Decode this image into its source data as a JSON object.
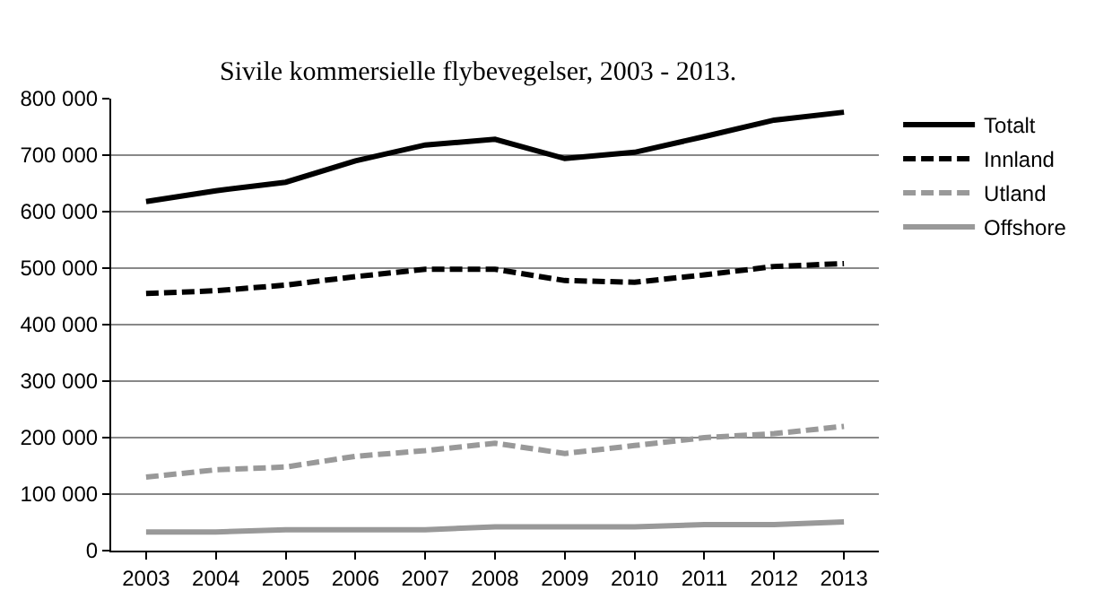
{
  "chart_data": {
    "type": "line",
    "title": "Sivile kommersielle flybevegelser, 2003 - 2013.",
    "categories": [
      "2003",
      "2004",
      "2005",
      "2006",
      "2007",
      "2008",
      "2009",
      "2010",
      "2011",
      "2012",
      "2013"
    ],
    "series": [
      {
        "name": "Totalt",
        "color": "#000000",
        "line_style": "solid",
        "values": [
          618000,
          637000,
          652000,
          690000,
          718000,
          728000,
          694000,
          705000,
          733000,
          762000,
          776000
        ]
      },
      {
        "name": "Innland",
        "color": "#000000",
        "line_style": "dashed",
        "values": [
          455000,
          460000,
          470000,
          485000,
          498000,
          498000,
          478000,
          475000,
          488000,
          503000,
          508000
        ]
      },
      {
        "name": "Utland",
        "color": "#999999",
        "line_style": "dashed",
        "values": [
          130000,
          143000,
          148000,
          167000,
          177000,
          190000,
          172000,
          186000,
          200000,
          207000,
          220000
        ]
      },
      {
        "name": "Offshore",
        "color": "#999999",
        "line_style": "solid",
        "values": [
          33000,
          33000,
          37000,
          37000,
          37000,
          42000,
          42000,
          42000,
          46000,
          46000,
          51000
        ]
      }
    ],
    "ylim": [
      0,
      800000
    ],
    "yticks": [
      0,
      {
        "value": 100000,
        "label": "100 000"
      },
      {
        "value": 200000,
        "label": "200 000"
      },
      {
        "value": 300000,
        "label": "300 000"
      },
      {
        "value": 400000,
        "label": "400 000"
      },
      {
        "value": 500000,
        "label": "500 000"
      },
      {
        "value": 600000,
        "label": "600 000"
      },
      {
        "value": 700000,
        "label": "700 000"
      },
      {
        "value": 800000,
        "label": "800 000"
      }
    ],
    "grid": "y",
    "legend": "right",
    "marker": "none"
  }
}
